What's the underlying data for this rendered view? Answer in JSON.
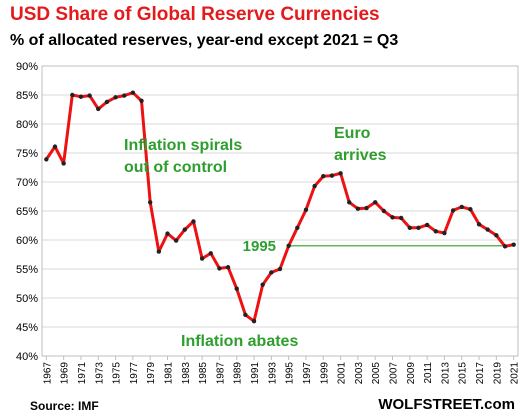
{
  "chart_data": {
    "type": "line",
    "title": "USD Share of Global  Reserve Currencies",
    "subtitle": "% of allocated reserves, year-end except 2021 = Q3",
    "source": "Source: IMF",
    "brand": "WOLFSTREET.com",
    "xlabel": "",
    "ylabel": "",
    "ylim": [
      40,
      90
    ],
    "y_ticks": [
      "40%",
      "45%",
      "50%",
      "55%",
      "60%",
      "65%",
      "70%",
      "75%",
      "80%",
      "85%",
      "90%"
    ],
    "x_tick_labels": [
      "1967",
      "1969",
      "1971",
      "1973",
      "1975",
      "1977",
      "1979",
      "1981",
      "1983",
      "1985",
      "1987",
      "1989",
      "1991",
      "1993",
      "1995",
      "1997",
      "1999",
      "2001",
      "2003",
      "2005",
      "2007",
      "2009",
      "2011",
      "2013",
      "2015",
      "2017",
      "2019",
      "2021"
    ],
    "grid": true,
    "series": [
      {
        "color": "#ee1111",
        "x": [
          1967,
          1968,
          1969,
          1970,
          1971,
          1972,
          1973,
          1974,
          1975,
          1976,
          1977,
          1978,
          1979,
          1980,
          1981,
          1982,
          1983,
          1984,
          1985,
          1986,
          1987,
          1988,
          1989,
          1990,
          1991,
          1992,
          1993,
          1994,
          1995,
          1996,
          1997,
          1998,
          1999,
          2000,
          2001,
          2002,
          2003,
          2004,
          2005,
          2006,
          2007,
          2008,
          2009,
          2010,
          2011,
          2012,
          2013,
          2014,
          2015,
          2016,
          2017,
          2018,
          2019,
          2020,
          2021
        ],
        "values": [
          73.9,
          76.1,
          73.2,
          85.0,
          84.7,
          84.9,
          82.6,
          83.8,
          84.6,
          84.9,
          85.4,
          84.0,
          66.5,
          58.0,
          61.1,
          59.9,
          61.8,
          63.2,
          56.8,
          57.7,
          55.1,
          55.3,
          51.6,
          47.1,
          46.0,
          52.3,
          54.4,
          55.0,
          59.0,
          62.1,
          65.2,
          69.3,
          71.0,
          71.1,
          71.5,
          66.5,
          65.4,
          65.5,
          66.5,
          65.0,
          63.9,
          63.8,
          62.1,
          62.1,
          62.6,
          61.5,
          61.2,
          65.1,
          65.7,
          65.3,
          62.7,
          61.8,
          60.8,
          58.9,
          59.2
        ]
      }
    ],
    "reference_line": {
      "value": 59.0,
      "label": "1995",
      "color": "#2e9e2e"
    },
    "annotations": [
      {
        "text": "Inflation spirals",
        "color": "#2e9e2e"
      },
      {
        "text": "out of control",
        "color": "#2e9e2e"
      },
      {
        "text": "Euro",
        "color": "#2e9e2e"
      },
      {
        "text": "arrives",
        "color": "#2e9e2e"
      },
      {
        "text": "Inflation abates",
        "color": "#2e9e2e"
      }
    ]
  }
}
